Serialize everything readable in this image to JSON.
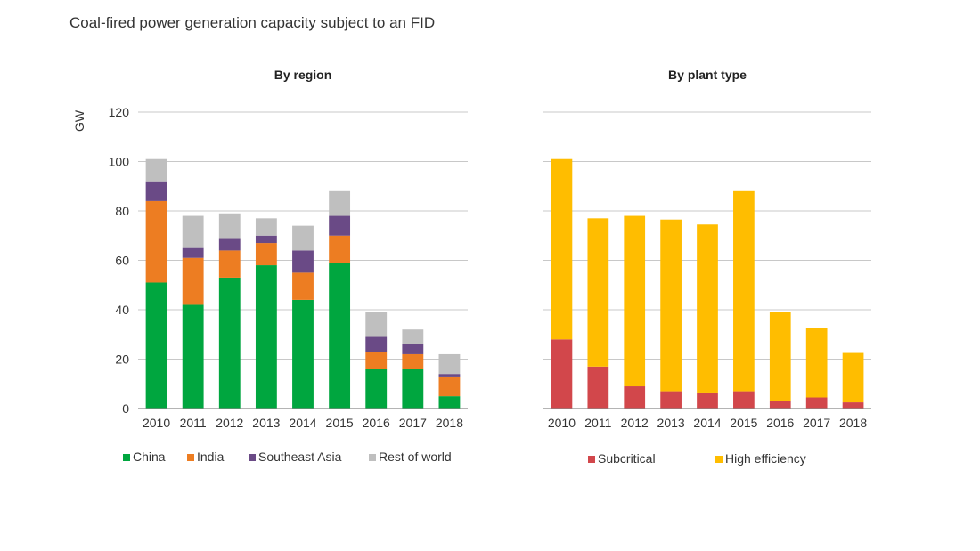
{
  "title": "Coal-fired power generation capacity subject to an FID",
  "chart_data": [
    {
      "type": "bar",
      "stacked": true,
      "title": "By region",
      "ylabel": "GW",
      "ylim": [
        0,
        120
      ],
      "yticks": [
        0,
        20,
        40,
        60,
        80,
        100,
        120
      ],
      "categories": [
        "2010",
        "2011",
        "2012",
        "2013",
        "2014",
        "2015",
        "2016",
        "2017",
        "2018"
      ],
      "series": [
        {
          "name": "China",
          "color": "#00a63f",
          "values": [
            51,
            42,
            53,
            58,
            44,
            59,
            16,
            16,
            5
          ]
        },
        {
          "name": "India",
          "color": "#ed7d22",
          "values": [
            33,
            19,
            11,
            9,
            11,
            11,
            7,
            6,
            8
          ]
        },
        {
          "name": "Southeast Asia",
          "color": "#6a4a86",
          "values": [
            8,
            4,
            5,
            3,
            9,
            8,
            6,
            4,
            1
          ]
        },
        {
          "name": "Rest of world",
          "color": "#bfbfbf",
          "values": [
            9,
            13,
            10,
            7,
            10,
            10,
            10,
            6,
            8
          ]
        }
      ],
      "legend_position": "bottom"
    },
    {
      "type": "bar",
      "stacked": true,
      "title": "By plant type",
      "ylim": [
        0,
        120
      ],
      "yticks": [
        0,
        20,
        40,
        60,
        80,
        100,
        120
      ],
      "categories": [
        "2010",
        "2011",
        "2012",
        "2013",
        "2014",
        "2015",
        "2016",
        "2017",
        "2018"
      ],
      "series": [
        {
          "name": "Subcritical",
          "color": "#d2474b",
          "values": [
            28,
            17,
            9,
            7,
            6.5,
            7,
            3,
            4.5,
            2.5
          ]
        },
        {
          "name": "High efficiency",
          "color": "#ffbd00",
          "values": [
            73,
            60,
            69,
            69.5,
            68,
            81,
            36,
            28,
            20
          ]
        }
      ],
      "legend_position": "bottom"
    }
  ]
}
